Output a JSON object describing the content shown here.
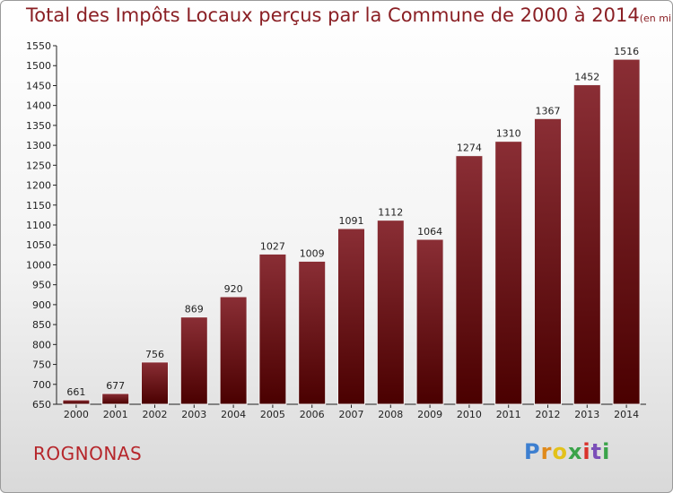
{
  "title": "Total des Impôts Locaux perçus par la Commune de 2000 à 2014",
  "title_unit": "(en milliers d'€)",
  "commune": "ROGNONAS",
  "logo": {
    "p": "P",
    "r": "r",
    "o": "o",
    "x": "x",
    "i1": "i",
    "t": "t",
    "i2": "i"
  },
  "colors": {
    "bar_top": "#8a2e35",
    "bar_bottom": "#4a0000",
    "title": "#8a1f24",
    "commune": "#b6262b"
  },
  "chart_data": {
    "type": "bar",
    "categories": [
      "2000",
      "2001",
      "2002",
      "2003",
      "2004",
      "2005",
      "2006",
      "2007",
      "2008",
      "2009",
      "2010",
      "2011",
      "2012",
      "2013",
      "2014"
    ],
    "values": [
      661,
      677,
      756,
      869,
      920,
      1027,
      1009,
      1091,
      1112,
      1064,
      1274,
      1310,
      1367,
      1452,
      1516
    ],
    "ylim": [
      650,
      1550
    ],
    "yticks": [
      650,
      700,
      750,
      800,
      850,
      900,
      950,
      1000,
      1050,
      1100,
      1150,
      1200,
      1250,
      1300,
      1350,
      1400,
      1450,
      1500,
      1550
    ],
    "grid": false,
    "legend": "none"
  }
}
